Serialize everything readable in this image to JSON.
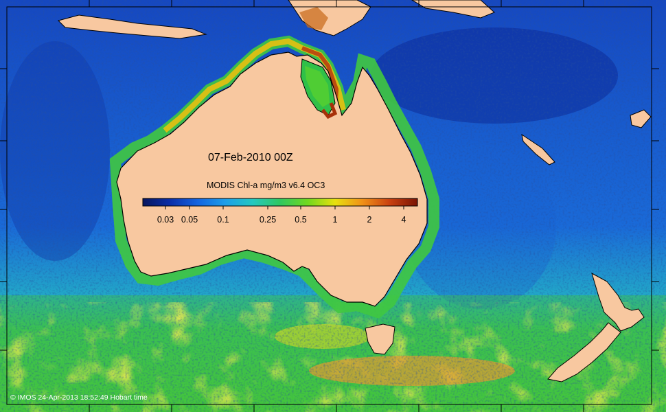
{
  "map": {
    "date_label": "07-Feb-2010 00Z",
    "colorbar": {
      "title": "MODIS Chl-a mg/m3 v6.4 OC3",
      "ticks": [
        "0.03",
        "0.05",
        "0.1",
        "0.25",
        "0.5",
        "1",
        "2",
        "4"
      ],
      "colors": [
        "#08165e",
        "#0a2ea8",
        "#1464e0",
        "#1e9ee8",
        "#24c8c0",
        "#30c860",
        "#70d820",
        "#e8e010",
        "#f09018",
        "#c84010",
        "#7a1404"
      ]
    },
    "credit": "© IMOS 24-Apr-2013 18:52:49 Hobart time",
    "colors": {
      "land": "#f8c8a0",
      "coastline": "#000000",
      "deep_ocean": "#1440b8",
      "southern_ocean": "#3cc04c"
    }
  }
}
